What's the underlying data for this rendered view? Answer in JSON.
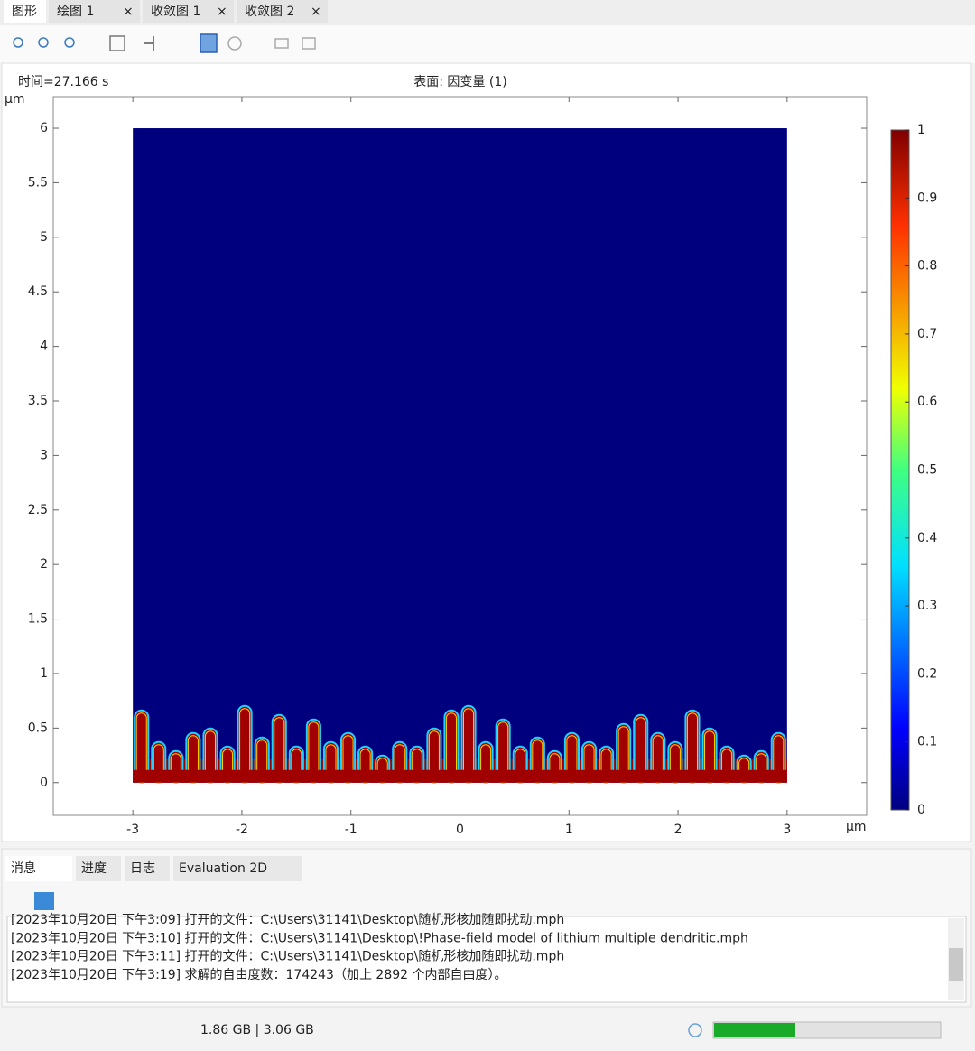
{
  "tabs": [
    "图形",
    "绘图 1",
    "收敛图 1",
    "收敛图 2"
  ],
  "chart_data": {
    "type": "surface",
    "time_label": "时间=27.166 s",
    "title": "表面: 因变量 (1)",
    "x_unit": "µm",
    "y_unit": "µm",
    "xlim": [
      -3.73,
      3.73
    ],
    "ylim": [
      -0.3,
      6.29
    ],
    "xticks": [
      -3,
      -2,
      -1,
      0,
      1,
      2,
      3
    ],
    "yticks": [
      0,
      0.5,
      1,
      1.5,
      2,
      2.5,
      3,
      3.5,
      4,
      4.5,
      5,
      5.5,
      6
    ],
    "clim": [
      0,
      1
    ],
    "cticks": [
      0,
      0.1,
      0.2,
      0.3,
      0.4,
      0.5,
      0.6,
      0.7,
      0.8,
      0.9,
      1
    ]
  },
  "bottom_tabs": [
    "消息",
    "进度",
    "日志",
    "Evaluation 2D"
  ],
  "messages": [
    "[2023年10月20日 下午3:09] 打开的文件：C:\\Users\\31141\\Desktop\\随机形核加随即扰动.mph",
    "[2023年10月20日 下午3:10] 打开的文件：C:\\Users\\31141\\Desktop\\!Phase-field model of lithium multiple dendritic.mph",
    "[2023年10月20日 下午3:11] 打开的文件：C:\\Users\\31141\\Desktop\\随机形核加随即扰动.mph",
    "[2023年10月20日 下午3:19] 求解的自由度数：174243（加上 2892 个内部自由度）。"
  ],
  "memory": "1.86 GB | 3.06 GB"
}
